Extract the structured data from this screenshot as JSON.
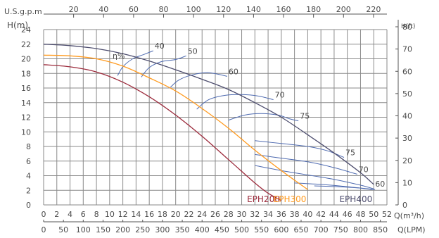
{
  "chart_data": {
    "type": "line",
    "title": "",
    "top_axis_label": "U.S.g.p.m",
    "top_ticks": [
      20,
      40,
      60,
      80,
      100,
      120,
      140,
      160,
      180,
      200,
      220
    ],
    "left_axis_label": "H(m)",
    "right_axis_label": "H(ft)",
    "x_axis_label": "Q(m³/h)",
    "lpm_axis_label": "Q(LPM)",
    "xlim": [
      0,
      52
    ],
    "ylim": [
      0,
      24
    ],
    "x_ticks": [
      0,
      2,
      4,
      6,
      8,
      10,
      12,
      14,
      16,
      18,
      20,
      22,
      24,
      26,
      28,
      30,
      32,
      34,
      36,
      38,
      40,
      42,
      44,
      46,
      48,
      50,
      52
    ],
    "y_ticks": [
      0,
      2,
      4,
      6,
      8,
      10,
      12,
      14,
      16,
      18,
      20,
      22,
      24
    ],
    "ft_ticks": [
      0,
      10,
      20,
      30,
      40,
      50,
      60,
      70,
      80
    ],
    "lpm_ticks": [
      0,
      50,
      100,
      150,
      200,
      250,
      300,
      350,
      400,
      450,
      500,
      550,
      600,
      650,
      700,
      750,
      800,
      850
    ],
    "grid": true,
    "efficiency_symbol": "η%",
    "series": [
      {
        "name": "EPH200",
        "color": "#9c2b3c",
        "x": [
          0,
          4,
          8,
          12,
          16,
          20,
          24,
          28,
          32,
          34,
          36
        ],
        "y": [
          19.2,
          18.9,
          18.2,
          16.8,
          14.8,
          12.3,
          9.4,
          6.2,
          3.0,
          1.6,
          0.6
        ]
      },
      {
        "name": "EPH300",
        "color": "#ff9a1e",
        "x": [
          0,
          4,
          8,
          12,
          16,
          20,
          24,
          28,
          32,
          36,
          40
        ],
        "y": [
          20.5,
          20.4,
          20.0,
          19.0,
          17.4,
          15.6,
          13.2,
          10.5,
          7.5,
          4.7,
          2.1
        ]
      },
      {
        "name": "EPH400",
        "color": "#4d4d6e",
        "x": [
          0,
          4,
          8,
          12,
          16,
          20,
          24,
          28,
          32,
          36,
          40,
          44,
          48,
          50
        ],
        "y": [
          22.0,
          21.8,
          21.4,
          20.7,
          19.7,
          18.5,
          17.2,
          15.8,
          14.0,
          12.0,
          9.6,
          7.1,
          4.4,
          2.8
        ]
      }
    ],
    "efficiency_curves": [
      {
        "label": "40",
        "x": [
          11.2,
          12.0,
          13.5,
          15.2,
          16.6
        ],
        "y": [
          17.7,
          18.9,
          20.0,
          20.6,
          21.1
        ]
      },
      {
        "label": "50",
        "x": [
          14.8,
          16.0,
          17.8,
          20.0,
          21.6
        ],
        "y": [
          17.5,
          18.8,
          19.6,
          19.9,
          20.4
        ]
      },
      {
        "label": "60",
        "x": [
          19.2,
          20.5,
          22.5,
          25.0,
          27.8
        ],
        "y": [
          16.1,
          17.1,
          17.8,
          18.1,
          17.6
        ]
      },
      {
        "label": "70",
        "x": [
          23.2,
          25.0,
          27.5,
          30.0,
          32.5,
          34.8
        ],
        "y": [
          13.1,
          14.4,
          15.0,
          15.1,
          14.9,
          14.4
        ]
      },
      {
        "label": "75",
        "x": [
          28.0,
          30.5,
          33.0,
          35.5,
          37.2,
          38.6
        ],
        "y": [
          11.6,
          12.3,
          12.5,
          12.3,
          11.8,
          11.5
        ]
      },
      {
        "label": "75",
        "x": [
          32.0,
          36.0,
          40.0,
          43.0,
          45.5
        ],
        "y": [
          8.8,
          8.4,
          8.0,
          7.4,
          6.5
        ]
      },
      {
        "label": "70",
        "x": [
          32.0,
          36.0,
          40.0,
          44.0,
          47.5
        ],
        "y": [
          6.9,
          6.4,
          5.9,
          5.1,
          4.2
        ]
      },
      {
        "label": "60",
        "x": [
          32.0,
          36.0,
          40.0,
          44.0,
          48.0,
          50.0
        ],
        "y": [
          5.4,
          4.7,
          4.1,
          3.5,
          2.7,
          2.2
        ]
      },
      {
        "label": "",
        "x": [
          38.0,
          42.0,
          46.0,
          49.8
        ],
        "y": [
          3.0,
          2.8,
          2.5,
          2.1
        ]
      },
      {
        "label": "",
        "x": [
          41.0,
          44.5,
          48.0,
          50.2
        ],
        "y": [
          2.6,
          2.5,
          2.3,
          2.1
        ]
      }
    ]
  }
}
